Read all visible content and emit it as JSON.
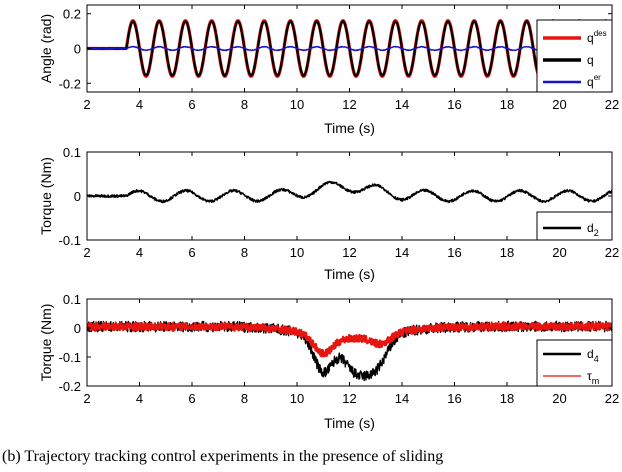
{
  "caption": "(b)    Trajectory tracking control experiments in the presence of sliding",
  "colors": {
    "red": "#e8140f",
    "black": "#000000",
    "blue": "#1515c8",
    "axis": "#000000"
  },
  "chart_data": [
    {
      "type": "line",
      "xlabel": "Time (s)",
      "ylabel": "Angle (rad)",
      "xlim": [
        2,
        22
      ],
      "ylim": [
        -0.25,
        0.25
      ],
      "xticks": [
        "2",
        "4",
        "6",
        "8",
        "10",
        "12",
        "14",
        "16",
        "18",
        "20",
        "22"
      ],
      "yticks": [
        "0.2",
        "0",
        "-0.2"
      ],
      "legend_position": "right",
      "series": [
        {
          "name": "q^des",
          "label": "q",
          "sup": "des",
          "color": "#e8140f",
          "signal": {
            "type": "sine",
            "amplitude": 0.16,
            "frequency_hz": 1.0,
            "start": 3.5,
            "end": 22,
            "offset": 0,
            "noise": 0
          }
        },
        {
          "name": "q",
          "label": "q",
          "sup": "",
          "color": "#000000",
          "signal": {
            "type": "sine",
            "amplitude": 0.155,
            "frequency_hz": 1.0,
            "start": 3.5,
            "end": 22,
            "offset": 0,
            "noise": 0.002
          }
        },
        {
          "name": "q^er",
          "label": "q",
          "sup": "er",
          "color": "#1515c8",
          "signal": {
            "type": "sine",
            "amplitude": 0.01,
            "frequency_hz": 1.0,
            "start": 3.5,
            "end": 22,
            "offset": 0,
            "noise": 0.002
          }
        }
      ]
    },
    {
      "type": "line",
      "xlabel": "Time (s)",
      "ylabel": "Torque (Nm)",
      "xlim": [
        2,
        22
      ],
      "ylim": [
        -0.1,
        0.1
      ],
      "xticks": [
        "2",
        "4",
        "6",
        "8",
        "10",
        "12",
        "14",
        "16",
        "18",
        "20",
        "22"
      ],
      "yticks": [
        "0.1",
        "0",
        "-0.1"
      ],
      "legend_position": "bottom-right",
      "series": [
        {
          "name": "d_2",
          "label": "d",
          "sub": "2",
          "color": "#000000",
          "signal": {
            "type": "sine",
            "amplitude": 0.012,
            "frequency_hz": 0.55,
            "start": 3.5,
            "end": 22,
            "offset": 0,
            "noise": 0.003,
            "bumps": [
              {
                "center": 11.8,
                "width": 1.6,
                "height": 0.022
              }
            ]
          }
        }
      ]
    },
    {
      "type": "line",
      "xlabel": "Time (s)",
      "ylabel": "Torque (Nm)",
      "xlim": [
        2,
        22
      ],
      "ylim": [
        -0.2,
        0.1
      ],
      "xticks": [
        "2",
        "4",
        "6",
        "8",
        "10",
        "12",
        "14",
        "16",
        "18",
        "20",
        "22"
      ],
      "yticks": [
        "0.1",
        "0",
        "-0.1",
        "-0.2"
      ],
      "legend_position": "bottom-right",
      "series": [
        {
          "name": "d_4",
          "label": "d",
          "sub": "4",
          "color": "#000000",
          "signal": {
            "type": "noise",
            "amplitude": 0,
            "frequency_hz": 1.0,
            "start": 2,
            "end": 22,
            "offset": 0.005,
            "noise": 0.018,
            "bumps": [
              {
                "center": 11.0,
                "width": 0.5,
                "height": -0.12
              },
              {
                "center": 12.2,
                "width": 0.6,
                "height": -0.1
              },
              {
                "center": 13.0,
                "width": 0.6,
                "height": -0.1
              },
              {
                "center": 12.0,
                "width": 2.2,
                "height": -0.045
              }
            ]
          }
        },
        {
          "name": "tau_m",
          "label": "τ",
          "sub": "m",
          "color": "#e8140f",
          "signal": {
            "type": "noise",
            "amplitude": 0,
            "frequency_hz": 1.0,
            "start": 2,
            "end": 22,
            "offset": 0.005,
            "noise": 0.012,
            "bumps": [
              {
                "center": 11.0,
                "width": 0.5,
                "height": -0.06
              },
              {
                "center": 12.0,
                "width": 2.2,
                "height": -0.04
              },
              {
                "center": 13.2,
                "width": 0.5,
                "height": -0.03
              }
            ]
          }
        }
      ]
    }
  ]
}
